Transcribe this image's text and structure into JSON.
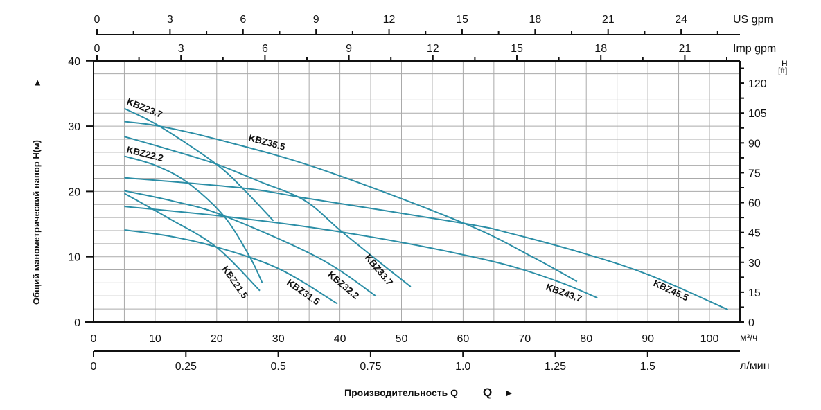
{
  "chart_data": {
    "type": "line",
    "title": "",
    "xlabel": "Производительность Q",
    "ylabel": "Общий манометрический напор H(м)",
    "xlim": [
      0,
      105
    ],
    "ylim": [
      0,
      40
    ],
    "grid": true,
    "x_unit": "м³/ч",
    "x_ticks": [
      0,
      10,
      20,
      30,
      40,
      50,
      60,
      70,
      80,
      90,
      100
    ],
    "y_ticks": [
      0,
      10,
      20,
      30,
      40
    ],
    "secondary_axes": {
      "us_gpm": {
        "label": "US gpm",
        "ticks": [
          0,
          3,
          6,
          9,
          12,
          15,
          18,
          21,
          24
        ]
      },
      "imp_gpm": {
        "label": "Imp gpm",
        "ticks": [
          0,
          3,
          6,
          9,
          12,
          15,
          18,
          21
        ]
      },
      "l_min": {
        "label": "л/мин",
        "ticks": [
          "0",
          "0.25",
          "0.5",
          "0.75",
          "1.0",
          "1.25",
          "1.5"
        ]
      },
      "ft": {
        "label_top": "H",
        "label_bottom": "[ft]",
        "ticks": [
          0,
          15,
          30,
          45,
          60,
          75,
          90,
          105,
          120
        ]
      }
    },
    "arrow_glyph": "►",
    "line_color": "#2b8ea6",
    "series": [
      {
        "name": "KBZ23.7",
        "x": [
          5,
          10.7,
          19.9,
          24.7,
          29.2
        ],
        "y": [
          32.7,
          30.0,
          24.2,
          20.0,
          15.5
        ]
      },
      {
        "name": "KBZ35.5",
        "x": [
          5,
          10.7,
          20,
          36.6,
          60.2,
          71.4,
          78.5
        ],
        "y": [
          30.7,
          30.0,
          28.0,
          23.5,
          15.1,
          9.9,
          6.2
        ]
      },
      {
        "name": "KBZ33.7",
        "x": [
          5,
          12,
          19.9,
          27,
          34.3,
          40.1,
          46,
          51.5
        ],
        "y": [
          28.4,
          26.5,
          24.2,
          21.5,
          18.6,
          14.0,
          9.5,
          5.4
        ]
      },
      {
        "name": "KBZ22.2",
        "x": [
          5,
          10,
          15.2,
          21.1,
          25.3,
          27.4
        ],
        "y": [
          25.4,
          24.0,
          21.4,
          16.3,
          10.1,
          6.0
        ]
      },
      {
        "name": "KBZ45.5",
        "x": [
          5,
          24.4,
          34.3,
          60.2,
          68,
          80,
          90.2,
          103
        ],
        "y": [
          22.1,
          20.5,
          19.0,
          15.1,
          13.5,
          10.4,
          7.2,
          1.9
        ]
      },
      {
        "name": "KBZ32.2",
        "x": [
          5,
          13,
          21.1,
          36.6,
          45.8
        ],
        "y": [
          20.1,
          18.5,
          16.3,
          9.8,
          4.0
        ]
      },
      {
        "name": "KBZ21.5",
        "x": [
          5,
          12,
          19.9,
          27
        ],
        "y": [
          19.7,
          16.0,
          11.5,
          4.8
        ]
      },
      {
        "name": "KBZ43.7",
        "x": [
          5,
          21,
          36,
          50,
          60,
          68,
          76,
          81.8
        ],
        "y": [
          17.7,
          16.2,
          14.4,
          12.2,
          10.3,
          8.5,
          6.0,
          3.7
        ]
      },
      {
        "name": "KBZ31.5",
        "x": [
          5,
          12,
          19.9,
          30,
          39.6
        ],
        "y": [
          14.1,
          13.2,
          11.5,
          8.2,
          2.8
        ]
      }
    ]
  }
}
